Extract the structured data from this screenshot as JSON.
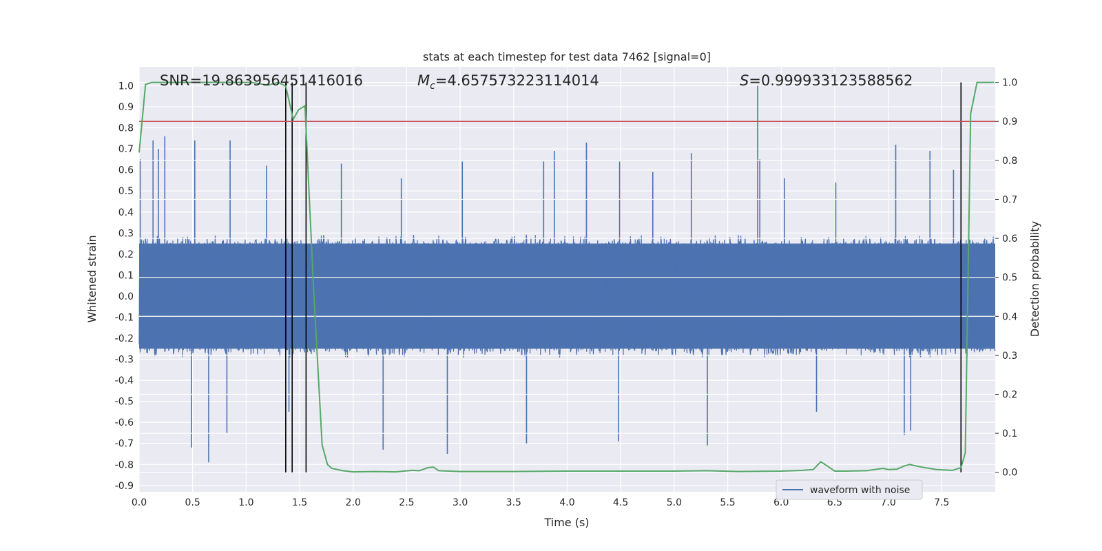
{
  "chart_data": {
    "type": "line",
    "title": "stats at each timestep for test data 7462 [signal=0]",
    "xlabel": "Time (s)",
    "ylabel": "Whitened strain",
    "y2label": "Detection probability",
    "xlim": [
      0.0,
      8.0
    ],
    "ylim": [
      -0.93,
      1.09
    ],
    "y2lim": [
      -0.05,
      1.04
    ],
    "xticks": [
      "0.0",
      "0.5",
      "1.0",
      "1.5",
      "2.0",
      "2.5",
      "3.0",
      "3.5",
      "4.0",
      "4.5",
      "5.0",
      "5.5",
      "6.0",
      "6.5",
      "7.0",
      "7.5"
    ],
    "yticks": [
      "-0.9",
      "-0.8",
      "-0.7",
      "-0.6",
      "-0.5",
      "-0.4",
      "-0.3",
      "-0.2",
      "-0.1",
      "0.0",
      "0.1",
      "0.2",
      "0.3",
      "0.4",
      "0.5",
      "0.6",
      "0.7",
      "0.8",
      "0.9",
      "1.0"
    ],
    "y2ticks": [
      "0.0",
      "0.1",
      "0.2",
      "0.3",
      "0.4",
      "0.5",
      "0.6",
      "0.7",
      "0.8",
      "0.9",
      "1.0"
    ],
    "grid": true,
    "legend_position": "lower-right",
    "annotations": {
      "snr": "SNR=19.863956451416016",
      "mc_symbol": "M",
      "mc_subscript": "c",
      "mc_value": "=4.657573223114014",
      "s_symbol": "S",
      "s_value": "=0.999933123588562"
    },
    "colors": {
      "waveform": "#4c72b0",
      "probability": "#55a868",
      "threshold": "#c44e52",
      "markers": "#000000",
      "plot_background": "#eaeaf2",
      "grid": "#ffffff"
    },
    "series": [
      {
        "name": "waveform with noise",
        "axis": "left",
        "kind": "noise",
        "typical_envelope": 0.25,
        "peaks": [
          {
            "x": 0.01,
            "y": 0.65
          },
          {
            "x": 0.13,
            "y": 0.74
          },
          {
            "x": 0.18,
            "y": 0.7
          },
          {
            "x": 0.24,
            "y": 0.76
          },
          {
            "x": 0.52,
            "y": 0.74
          },
          {
            "x": 0.85,
            "y": 0.74
          },
          {
            "x": 1.19,
            "y": 0.62
          },
          {
            "x": 1.43,
            "y": 0.56
          },
          {
            "x": 1.89,
            "y": 0.63
          },
          {
            "x": 2.45,
            "y": 0.56
          },
          {
            "x": 3.02,
            "y": 0.64
          },
          {
            "x": 3.78,
            "y": 0.64
          },
          {
            "x": 3.88,
            "y": 0.69
          },
          {
            "x": 4.18,
            "y": 0.73
          },
          {
            "x": 4.49,
            "y": 0.64
          },
          {
            "x": 4.8,
            "y": 0.59
          },
          {
            "x": 5.16,
            "y": 0.68
          },
          {
            "x": 5.78,
            "y": 1.0
          },
          {
            "x": 5.8,
            "y": 0.65
          },
          {
            "x": 6.03,
            "y": 0.56
          },
          {
            "x": 6.51,
            "y": 0.54
          },
          {
            "x": 7.07,
            "y": 0.72
          },
          {
            "x": 7.39,
            "y": 0.69
          },
          {
            "x": 7.61,
            "y": 0.6
          },
          {
            "x": 0.65,
            "y": -0.79
          },
          {
            "x": 0.49,
            "y": -0.72
          },
          {
            "x": 0.82,
            "y": -0.65
          },
          {
            "x": 2.28,
            "y": -0.73
          },
          {
            "x": 2.88,
            "y": -0.75
          },
          {
            "x": 3.62,
            "y": -0.7
          },
          {
            "x": 4.48,
            "y": -0.69
          },
          {
            "x": 5.31,
            "y": -0.71
          },
          {
            "x": 7.15,
            "y": -0.66
          },
          {
            "x": 7.21,
            "y": -0.64
          },
          {
            "x": 1.4,
            "y": -0.55
          },
          {
            "x": 6.33,
            "y": -0.55
          }
        ]
      },
      {
        "name": "",
        "axis": "right",
        "kind": "line",
        "x": [
          0.0,
          0.06,
          0.12,
          0.3,
          0.6,
          0.9,
          1.05,
          1.16,
          1.21,
          1.3,
          1.37,
          1.44,
          1.49,
          1.55,
          1.63,
          1.71,
          1.76,
          1.8,
          1.9,
          2.0,
          2.2,
          2.4,
          2.55,
          2.62,
          2.7,
          2.75,
          2.8,
          3.0,
          3.5,
          4.0,
          4.5,
          5.0,
          5.3,
          5.6,
          6.0,
          6.2,
          6.3,
          6.37,
          6.43,
          6.5,
          6.6,
          6.8,
          6.95,
          7.0,
          7.08,
          7.15,
          7.2,
          7.3,
          7.45,
          7.6,
          7.68,
          7.72,
          7.77,
          7.83,
          7.9,
          7.99
        ],
        "y": [
          0.82,
          0.995,
          1.0,
          1.0,
          1.0,
          1.0,
          1.0,
          0.995,
          0.993,
          1.0,
          0.99,
          0.905,
          0.93,
          0.94,
          0.47,
          0.07,
          0.02,
          0.01,
          0.004,
          0.001,
          0.002,
          0.001,
          0.005,
          0.004,
          0.012,
          0.013,
          0.004,
          0.002,
          0.002,
          0.003,
          0.003,
          0.003,
          0.004,
          0.002,
          0.003,
          0.005,
          0.007,
          0.027,
          0.016,
          0.003,
          0.003,
          0.004,
          0.01,
          0.007,
          0.008,
          0.016,
          0.02,
          0.014,
          0.007,
          0.005,
          0.012,
          0.05,
          0.92,
          1.0,
          1.0,
          1.0
        ]
      }
    ],
    "threshold": {
      "axis": "right",
      "y": 0.9
    },
    "markers_x": [
      1.37,
      1.43,
      1.56,
      7.68
    ],
    "markers_range": [
      0.0,
      1.0
    ]
  }
}
